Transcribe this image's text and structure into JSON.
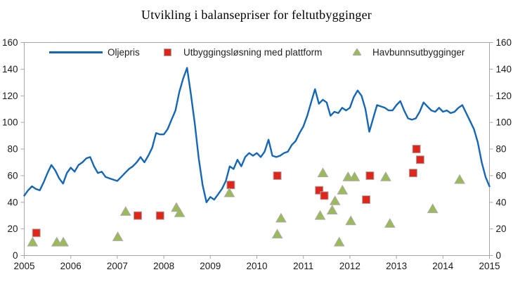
{
  "title": "Utvikling i balansepriser for feltutbygginger",
  "colors": {
    "oil_line": "#1566b4",
    "platform_marker": "#e0261b",
    "subsea_marker": "#9cba58",
    "marker_outline": "#a9a9a9",
    "axis": "#a6a6a6",
    "text": "#1a1a1a"
  },
  "legend": {
    "oil": "Oljepris",
    "platform": "Utbyggingsløsning med plattform",
    "subsea": "Havbunnsutbygginger"
  },
  "chart_data": {
    "type": "line",
    "title": "Utvikling i balansepriser for feltutbygginger",
    "xlabel": "",
    "ylabel": "",
    "xlim": [
      2005,
      2015
    ],
    "ylim": [
      0,
      160
    ],
    "x_ticks": [
      2005,
      2006,
      2007,
      2008,
      2009,
      2010,
      2011,
      2012,
      2013,
      2014,
      2015
    ],
    "y_ticks": [
      0,
      20,
      40,
      60,
      80,
      100,
      120,
      140,
      160
    ],
    "y_axis_right_mirror": true,
    "grid": false,
    "legend_position": "top-inside",
    "series": [
      {
        "name": "Oljepris",
        "type": "line",
        "color_key": "oil_line",
        "x_start": 2005,
        "x_step_months": 1,
        "values": [
          45,
          49,
          52,
          50,
          49,
          55,
          62,
          68,
          64,
          58,
          54,
          62,
          66,
          63,
          68,
          70,
          73,
          74,
          67,
          62,
          63,
          59,
          58,
          57,
          56,
          59,
          62,
          65,
          67,
          70,
          74,
          70,
          75,
          81,
          92,
          91,
          91,
          95,
          102,
          109,
          123,
          133,
          141,
          121,
          99,
          73,
          53,
          40,
          44,
          42,
          46,
          50,
          56,
          67,
          65,
          72,
          67,
          74,
          77,
          75,
          77,
          74,
          78,
          87,
          75,
          74,
          75,
          77,
          78,
          83,
          86,
          92,
          97,
          105,
          115,
          125,
          114,
          117,
          115,
          105,
          108,
          107,
          111,
          109,
          111,
          119,
          124,
          120,
          110,
          93,
          103,
          113,
          112,
          111,
          109,
          109,
          113,
          116,
          109,
          103,
          102,
          103,
          108,
          115,
          112,
          109,
          108,
          111,
          108,
          109,
          107,
          108,
          111,
          113,
          107,
          101,
          95,
          85,
          70,
          59,
          52
        ]
      },
      {
        "name": "Utbyggingsløsning med plattform",
        "type": "scatter",
        "marker": "square",
        "color_key": "platform_marker",
        "points": [
          [
            2005.26,
            17
          ],
          [
            2007.44,
            30
          ],
          [
            2007.92,
            30
          ],
          [
            2009.44,
            53
          ],
          [
            2010.44,
            60
          ],
          [
            2011.34,
            49
          ],
          [
            2011.45,
            45
          ],
          [
            2012.35,
            42
          ],
          [
            2012.43,
            60
          ],
          [
            2013.36,
            62
          ],
          [
            2013.43,
            80
          ],
          [
            2013.51,
            72
          ]
        ]
      },
      {
        "name": "Havbunnsutbygginger",
        "type": "scatter",
        "marker": "triangle",
        "color_key": "subsea_marker",
        "points": [
          [
            2005.18,
            10
          ],
          [
            2005.7,
            10
          ],
          [
            2005.84,
            10
          ],
          [
            2007.01,
            14
          ],
          [
            2007.18,
            33
          ],
          [
            2008.27,
            36
          ],
          [
            2008.34,
            32
          ],
          [
            2009.41,
            47
          ],
          [
            2010.44,
            16
          ],
          [
            2010.52,
            28
          ],
          [
            2011.36,
            30
          ],
          [
            2011.42,
            62
          ],
          [
            2011.62,
            34
          ],
          [
            2011.68,
            41
          ],
          [
            2011.77,
            10
          ],
          [
            2011.84,
            49
          ],
          [
            2011.96,
            59
          ],
          [
            2012.02,
            26
          ],
          [
            2012.1,
            59
          ],
          [
            2012.77,
            59
          ],
          [
            2012.86,
            24
          ],
          [
            2013.78,
            35
          ],
          [
            2014.36,
            57
          ]
        ]
      }
    ]
  }
}
